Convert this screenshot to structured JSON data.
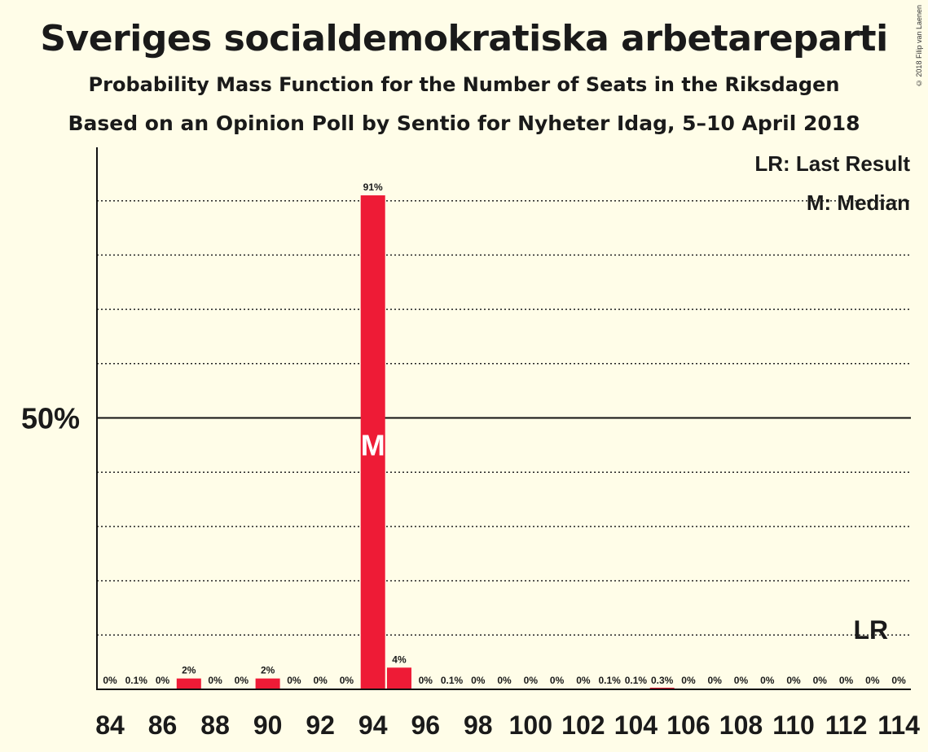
{
  "title": "Sveriges socialdemokratiska arbetareparti",
  "subtitle": "Probability Mass Function for the Number of Seats in the Riksdagen",
  "source": "Based on an Opinion Poll by Sentio for Nyheter Idag, 5–10 April 2018",
  "copyright": "© 2018 Filip van Laenen",
  "legend": {
    "last_result": "LR: Last Result",
    "median": "M: Median"
  },
  "colors": {
    "bar": "#ee1b36",
    "background": "#fffde8",
    "text": "#1a1a1a"
  },
  "chart_data": {
    "type": "bar",
    "x": [
      84,
      85,
      86,
      87,
      88,
      89,
      90,
      91,
      92,
      93,
      94,
      95,
      96,
      97,
      98,
      99,
      100,
      101,
      102,
      103,
      104,
      105,
      106,
      107,
      108,
      109,
      110,
      111,
      112,
      113,
      114
    ],
    "values": [
      0,
      0.1,
      0,
      2,
      0,
      0,
      2,
      0,
      0,
      0,
      91,
      4,
      0,
      0.1,
      0,
      0,
      0,
      0,
      0,
      0.1,
      0.1,
      0.3,
      0,
      0,
      0,
      0,
      0,
      0,
      0,
      0,
      0
    ],
    "labels": [
      "0%",
      "0.1%",
      "0%",
      "2%",
      "0%",
      "0%",
      "2%",
      "0%",
      "0%",
      "0%",
      "91%",
      "4%",
      "0%",
      "0.1%",
      "0%",
      "0%",
      "0%",
      "0%",
      "0%",
      "0.1%",
      "0.1%",
      "0.3%",
      "0%",
      "0%",
      "0%",
      "0%",
      "0%",
      "0%",
      "0%",
      "0%",
      "0%"
    ],
    "x_tick_labels": [
      "84",
      "86",
      "88",
      "90",
      "92",
      "94",
      "96",
      "98",
      "100",
      "102",
      "104",
      "106",
      "108",
      "110",
      "112",
      "114"
    ],
    "y_tick_label": "50%",
    "ylim": [
      0,
      100
    ],
    "gridlines": [
      10,
      20,
      30,
      40,
      60,
      70,
      80,
      90
    ],
    "median_seat": 94,
    "median_marker": "M",
    "last_result_seat": 113,
    "last_result_marker": "LR"
  }
}
